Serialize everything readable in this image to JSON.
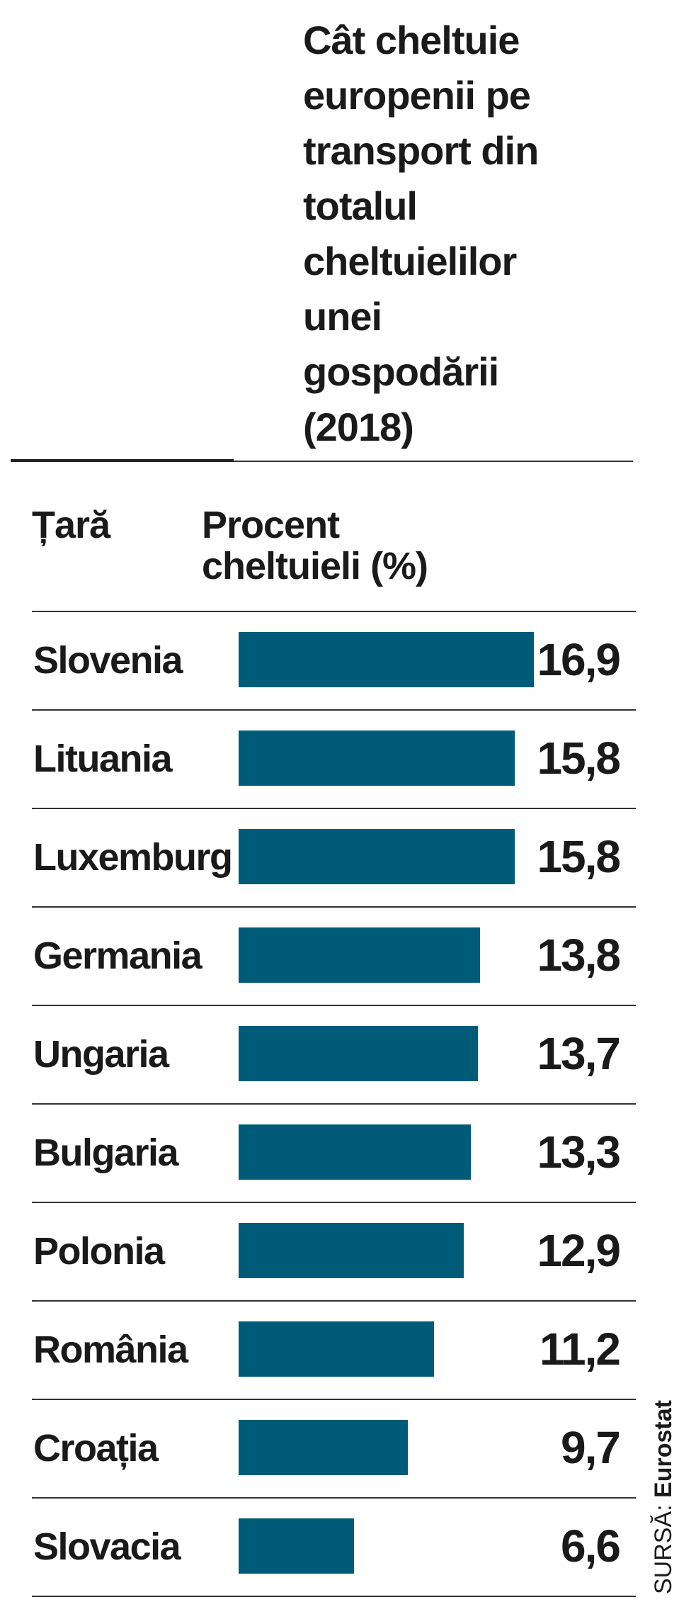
{
  "chart_data": {
    "type": "bar",
    "orientation": "horizontal",
    "title": "Cât cheltuie europenii pe transport din totalul cheltuielilor unei gospodării (2018)",
    "title_lines": [
      "Cât cheltuie",
      "europenii pe",
      "transport din",
      "totalul",
      "cheltuielilor",
      "unei",
      "gospodării",
      "(2018)"
    ],
    "column_headers": {
      "country": "Țară",
      "percent_lines": [
        "Procent",
        "cheltuieli (%)"
      ]
    },
    "categories": [
      "Slovenia",
      "Lituania",
      "Luxemburg",
      "Germania",
      "Ungaria",
      "Bulgaria",
      "Polonia",
      "România",
      "Croația",
      "Slovacia"
    ],
    "values": [
      16.9,
      15.8,
      15.8,
      13.8,
      13.7,
      13.3,
      12.9,
      11.2,
      9.7,
      6.6
    ],
    "value_labels": [
      "16,9",
      "15,8",
      "15,8",
      "13,8",
      "13,7",
      "13,3",
      "12,9",
      "11,2",
      "9,7",
      "6,6"
    ],
    "xlim": [
      0,
      16.9
    ],
    "bar_color": "#005b78",
    "grid": false,
    "source": {
      "label": "SURSĂ:",
      "name": "Eurostat"
    }
  }
}
